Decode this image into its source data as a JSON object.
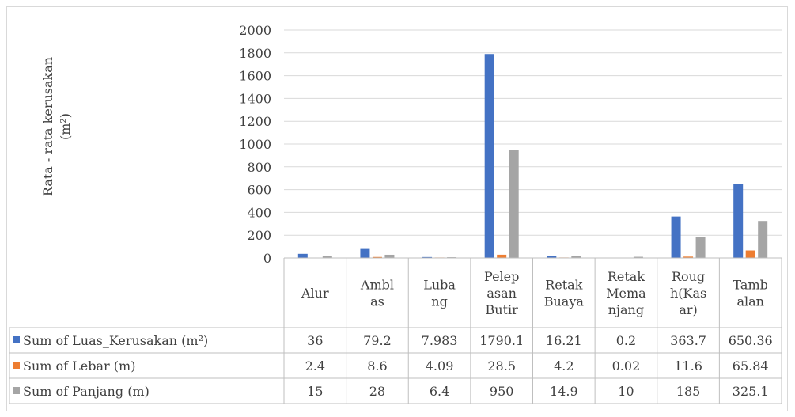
{
  "chart_data": {
    "type": "bar",
    "categories": [
      [
        "Alur"
      ],
      [
        "Ambl",
        "as"
      ],
      [
        "Luba",
        "ng"
      ],
      [
        "Pelep",
        "asan",
        "Butir"
      ],
      [
        "Retak",
        "Buaya"
      ],
      [
        "Retak",
        "Mema",
        "njang"
      ],
      [
        "Roug",
        "h(Kas",
        "ar)"
      ],
      [
        "Tamb",
        "alan"
      ]
    ],
    "series": [
      {
        "name": "Sum of Luas_Kerusakan (m²)",
        "color": "#4472c4",
        "values": [
          36,
          79.2,
          7.983,
          1790.1,
          16.21,
          0.2,
          363.7,
          650.36
        ],
        "labels": [
          "36",
          "79.2",
          "7.983",
          "1790.1",
          "16.21",
          "0.2",
          "363.7",
          "650.36"
        ]
      },
      {
        "name": "Sum of Lebar (m)",
        "color": "#ed7d31",
        "values": [
          2.4,
          8.6,
          4.09,
          28.5,
          4.2,
          0.02,
          11.6,
          65.84
        ],
        "labels": [
          "2.4",
          "8.6",
          "4.09",
          "28.5",
          "4.2",
          "0.02",
          "11.6",
          "65.84"
        ]
      },
      {
        "name": "Sum of Panjang (m)",
        "color": "#a5a5a5",
        "values": [
          15,
          28,
          6.4,
          950,
          14.9,
          10,
          185,
          325.1
        ],
        "labels": [
          "15",
          "28",
          "6.4",
          "950",
          "14.9",
          "10",
          "185",
          "325.1"
        ]
      }
    ],
    "ylabel_lines": [
      "Rata - rata kerusakan",
      "(m²)"
    ],
    "ylim": [
      0,
      2000
    ],
    "yticks": [
      0,
      200,
      400,
      600,
      800,
      1000,
      1200,
      1400,
      1600,
      1800,
      2000
    ],
    "grid": true,
    "legend": "data-table"
  }
}
